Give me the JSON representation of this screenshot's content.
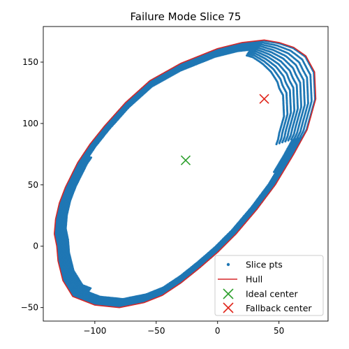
{
  "chart_data": {
    "type": "scatter",
    "title": "Failure Mode Slice 75",
    "xlabel": "",
    "ylabel": "",
    "xlim": [
      -142,
      90
    ],
    "ylim": [
      -61,
      179
    ],
    "xticks": [
      -100,
      -50,
      0,
      50
    ],
    "yticks": [
      -50,
      0,
      50,
      100,
      150
    ],
    "grid": false,
    "legend_position": "lower right",
    "colors": {
      "slice": "#1f77b4",
      "hull": "#d62728",
      "ideal": "#2ca02c",
      "fallback": "#e0261b"
    },
    "series": [
      {
        "name": "Hull",
        "type": "line",
        "points": [
          [
            -131,
            0
          ],
          [
            -133,
            10
          ],
          [
            -132,
            22
          ],
          [
            -129,
            35
          ],
          [
            -124,
            48
          ],
          [
            -114,
            68
          ],
          [
            -104,
            83
          ],
          [
            -92,
            98
          ],
          [
            -75,
            117
          ],
          [
            -55,
            135
          ],
          [
            -30,
            149
          ],
          [
            0,
            161
          ],
          [
            20,
            166
          ],
          [
            38,
            168
          ],
          [
            50,
            166
          ],
          [
            62,
            162
          ],
          [
            72,
            155
          ],
          [
            79,
            142
          ],
          [
            80,
            120
          ],
          [
            73,
            95
          ],
          [
            62,
            75
          ],
          [
            47,
            50
          ],
          [
            32,
            30
          ],
          [
            15,
            10
          ],
          [
            0,
            -5
          ],
          [
            -15,
            -18
          ],
          [
            -30,
            -30
          ],
          [
            -45,
            -40
          ],
          [
            -60,
            -46
          ],
          [
            -80,
            -50
          ],
          [
            -100,
            -48
          ],
          [
            -118,
            -41
          ],
          [
            -126,
            -28
          ],
          [
            -130,
            -12
          ],
          [
            -131,
            0
          ]
        ]
      },
      {
        "name": "Ideal center",
        "type": "marker",
        "x": -26,
        "y": 70
      },
      {
        "name": "Fallback center",
        "type": "marker",
        "x": 38,
        "y": 120
      }
    ],
    "legend": [
      "Slice pts",
      "Hull",
      "Ideal center",
      "Fallback center"
    ]
  }
}
